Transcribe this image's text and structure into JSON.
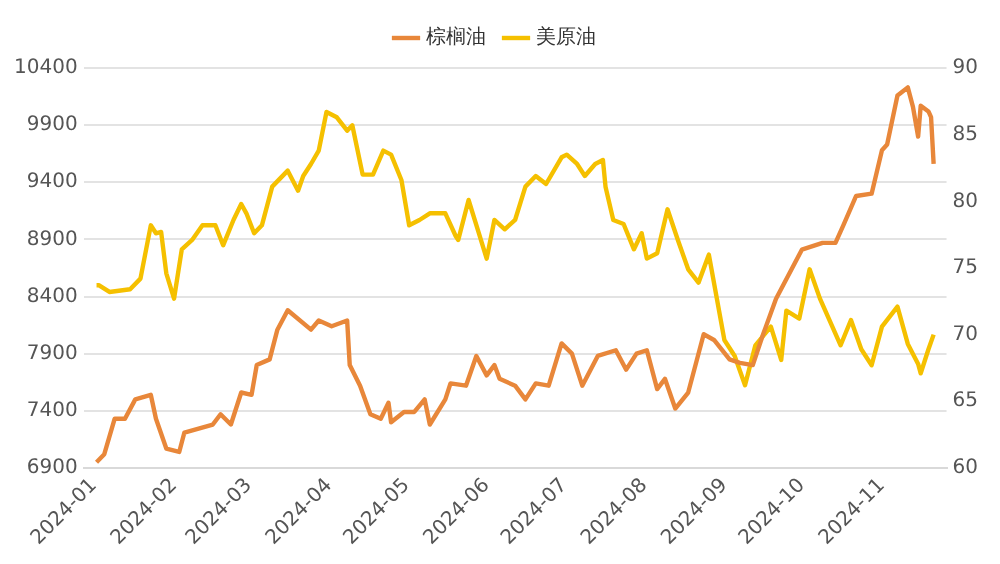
{
  "chart_data": {
    "type": "line",
    "legend": "top",
    "grid": "y",
    "marker": "none",
    "line_style": "solid",
    "xlim": [
      "2023-12-28",
      "2024-11-26"
    ],
    "xticks": [
      "2024-01",
      "2024-02",
      "2024-03",
      "2024-04",
      "2024-05",
      "2024-06",
      "2024-07",
      "2024-08",
      "2024-09",
      "2024-10",
      "2024-11"
    ],
    "ylim": [
      6900,
      10400
    ],
    "yticks": [
      6900,
      7400,
      7900,
      8400,
      8900,
      9400,
      9900,
      10400
    ],
    "y2lim": [
      60,
      90
    ],
    "y2ticks": [
      60,
      65,
      70,
      75,
      80,
      85,
      90
    ],
    "series": [
      {
        "name": "棕榈油",
        "color": "#e8873a",
        "x": [
          "2024-01-02",
          "2024-01-05",
          "2024-01-09",
          "2024-01-13",
          "2024-01-17",
          "2024-01-23",
          "2024-01-25",
          "2024-01-29",
          "2024-02-03",
          "2024-02-05",
          "2024-02-16",
          "2024-02-19",
          "2024-02-23",
          "2024-02-27",
          "2024-03-02",
          "2024-03-04",
          "2024-03-09",
          "2024-03-12",
          "2024-03-16",
          "2024-03-25",
          "2024-03-28",
          "2024-04-02",
          "2024-04-08",
          "2024-04-09",
          "2024-04-13",
          "2024-04-17",
          "2024-04-21",
          "2024-04-24",
          "2024-04-25",
          "2024-04-30",
          "2024-05-04",
          "2024-05-08",
          "2024-05-10",
          "2024-05-16",
          "2024-05-18",
          "2024-05-24",
          "2024-05-28",
          "2024-06-01",
          "2024-06-04",
          "2024-06-06",
          "2024-06-12",
          "2024-06-16",
          "2024-06-20",
          "2024-06-25",
          "2024-06-30",
          "2024-07-04",
          "2024-07-08",
          "2024-07-14",
          "2024-07-21",
          "2024-07-25",
          "2024-07-29",
          "2024-08-02",
          "2024-08-06",
          "2024-08-09",
          "2024-08-13",
          "2024-08-18",
          "2024-08-24",
          "2024-08-28",
          "2024-09-03",
          "2024-09-07",
          "2024-09-12",
          "2024-09-16",
          "2024-09-21",
          "2024-10-01",
          "2024-10-09",
          "2024-10-14",
          "2024-10-17",
          "2024-10-22",
          "2024-10-28",
          "2024-11-01",
          "2024-11-03",
          "2024-11-07",
          "2024-11-11",
          "2024-11-13",
          "2024-11-15",
          "2024-11-16",
          "2024-11-19",
          "2024-11-20",
          "2024-11-21"
        ],
        "values": [
          6950,
          7020,
          7330,
          7330,
          7500,
          7540,
          7330,
          7070,
          7040,
          7210,
          7280,
          7370,
          7280,
          7560,
          7540,
          7800,
          7850,
          8110,
          8280,
          8110,
          8190,
          8140,
          8190,
          7800,
          7620,
          7370,
          7330,
          7470,
          7300,
          7390,
          7390,
          7500,
          7280,
          7500,
          7640,
          7620,
          7880,
          7710,
          7800,
          7680,
          7620,
          7500,
          7640,
          7620,
          7990,
          7900,
          7620,
          7880,
          7930,
          7760,
          7900,
          7930,
          7590,
          7680,
          7420,
          7560,
          8070,
          8020,
          7850,
          7820,
          7800,
          8070,
          8380,
          8810,
          8870,
          8870,
          9020,
          9280,
          9300,
          9680,
          9730,
          10160,
          10230,
          10060,
          9800,
          10070,
          10020,
          9970,
          9560
        ]
      },
      {
        "name": "美原油",
        "color": "#f5c000",
        "axis": "y2",
        "x": [
          "2024-01-02",
          "2024-01-03",
          "2024-01-07",
          "2024-01-15",
          "2024-01-19",
          "2024-01-23",
          "2024-01-25",
          "2024-01-27",
          "2024-01-29",
          "2024-02-01",
          "2024-02-04",
          "2024-02-08",
          "2024-02-12",
          "2024-02-17",
          "2024-02-20",
          "2024-02-24",
          "2024-02-27",
          "2024-02-29",
          "2024-03-03",
          "2024-03-06",
          "2024-03-10",
          "2024-03-16",
          "2024-03-20",
          "2024-03-22",
          "2024-03-25",
          "2024-03-28",
          "2024-03-31",
          "2024-04-04",
          "2024-04-08",
          "2024-04-10",
          "2024-04-14",
          "2024-04-18",
          "2024-04-22",
          "2024-04-25",
          "2024-04-29",
          "2024-05-02",
          "2024-05-06",
          "2024-05-10",
          "2024-05-16",
          "2024-05-20",
          "2024-05-21",
          "2024-05-25",
          "2024-05-29",
          "2024-06-01",
          "2024-06-04",
          "2024-06-08",
          "2024-06-12",
          "2024-06-16",
          "2024-06-20",
          "2024-06-24",
          "2024-06-30",
          "2024-07-02",
          "2024-07-06",
          "2024-07-09",
          "2024-07-13",
          "2024-07-16",
          "2024-07-17",
          "2024-07-20",
          "2024-07-24",
          "2024-07-28",
          "2024-07-31",
          "2024-08-02",
          "2024-08-06",
          "2024-08-10",
          "2024-08-14",
          "2024-08-18",
          "2024-08-22",
          "2024-08-26",
          "2024-09-01",
          "2024-09-05",
          "2024-09-09",
          "2024-09-13",
          "2024-09-19",
          "2024-09-23",
          "2024-09-25",
          "2024-09-30",
          "2024-10-04",
          "2024-10-08",
          "2024-10-16",
          "2024-10-20",
          "2024-10-24",
          "2024-10-28",
          "2024-11-01",
          "2024-11-07",
          "2024-11-11",
          "2024-11-15",
          "2024-11-16",
          "2024-11-19",
          "2024-11-21"
        ],
        "values": [
          73.7,
          73.7,
          73.2,
          73.4,
          74.2,
          78.2,
          77.6,
          77.7,
          74.6,
          72.7,
          76.4,
          77.1,
          78.2,
          78.2,
          76.7,
          78.6,
          79.8,
          79.1,
          77.6,
          78.2,
          81.1,
          82.3,
          80.8,
          81.9,
          82.8,
          83.8,
          86.7,
          86.3,
          85.3,
          85.7,
          82.0,
          82.0,
          83.8,
          83.5,
          81.6,
          78.2,
          78.6,
          79.1,
          79.1,
          77.4,
          77.1,
          80.1,
          77.6,
          75.7,
          78.6,
          77.9,
          78.6,
          81.1,
          81.9,
          81.3,
          83.3,
          83.5,
          82.8,
          81.9,
          82.8,
          83.1,
          81.1,
          78.6,
          78.3,
          76.4,
          77.6,
          75.7,
          76.1,
          79.4,
          77.1,
          74.9,
          73.9,
          76.0,
          69.6,
          68.4,
          66.2,
          69.2,
          70.6,
          68.1,
          71.8,
          71.2,
          74.9,
          72.7,
          69.2,
          71.1,
          68.9,
          67.7,
          70.6,
          72.1,
          69.3,
          67.8,
          67.1,
          68.9,
          70.0
        ]
      }
    ]
  }
}
